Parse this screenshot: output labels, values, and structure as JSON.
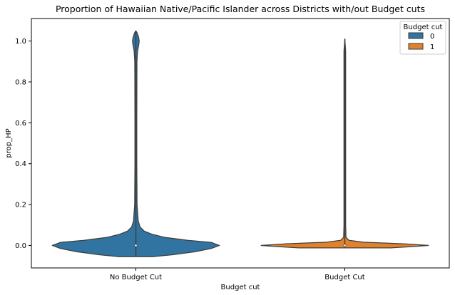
{
  "chart_data": {
    "type": "violin",
    "title": "Proportion of Hawaiian Native/Pacific Islander across Districts with/out Budget cuts",
    "xlabel": "Budget cut",
    "ylabel": "prop_HP",
    "categories": [
      "No Budget Cut",
      "Budget Cut"
    ],
    "ylim": [
      -0.11,
      1.11
    ],
    "yticks": [
      0.0,
      0.2,
      0.4,
      0.6,
      0.8,
      1.0
    ],
    "ytick_labels": [
      "0.0",
      "0.2",
      "0.4",
      "0.6",
      "0.8",
      "1.0"
    ],
    "grid": false,
    "legend": {
      "title": "Budget cut",
      "placement": "top-right",
      "entries": [
        "0",
        "1"
      ]
    },
    "series": [
      {
        "name": "0",
        "category": "No Budget Cut",
        "color": "#3274a1",
        "median": 0.0,
        "range": [
          -0.055,
          1.05
        ],
        "profile": [
          [
            -0.055,
            0.2
          ],
          [
            -0.045,
            0.45
          ],
          [
            -0.03,
            0.72
          ],
          [
            -0.015,
            0.9
          ],
          [
            0.0,
            1.0
          ],
          [
            0.015,
            0.9
          ],
          [
            0.025,
            0.62
          ],
          [
            0.04,
            0.34
          ],
          [
            0.055,
            0.19
          ],
          [
            0.07,
            0.1
          ],
          [
            0.09,
            0.05
          ],
          [
            0.12,
            0.028
          ],
          [
            0.2,
            0.014
          ],
          [
            0.4,
            0.011
          ],
          [
            0.6,
            0.011
          ],
          [
            0.8,
            0.012
          ],
          [
            0.9,
            0.013
          ],
          [
            0.95,
            0.02
          ],
          [
            0.98,
            0.034
          ],
          [
            1.0,
            0.04
          ],
          [
            1.02,
            0.032
          ],
          [
            1.04,
            0.015
          ],
          [
            1.05,
            0.0
          ]
        ]
      },
      {
        "name": "1",
        "category": "Budget Cut",
        "color": "#e1812c",
        "median": 0.0,
        "range": [
          -0.012,
          1.01
        ],
        "profile": [
          [
            -0.012,
            0.55
          ],
          [
            -0.006,
            0.8
          ],
          [
            0.0,
            1.0
          ],
          [
            0.008,
            0.7
          ],
          [
            0.016,
            0.22
          ],
          [
            0.025,
            0.05
          ],
          [
            0.04,
            0.014
          ],
          [
            0.1,
            0.01
          ],
          [
            0.5,
            0.01
          ],
          [
            0.95,
            0.01
          ],
          [
            1.01,
            0.0
          ]
        ]
      }
    ]
  }
}
